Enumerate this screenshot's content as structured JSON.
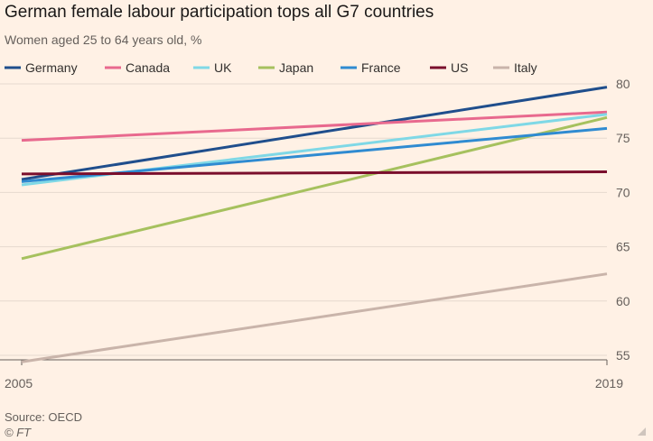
{
  "header": {
    "title": "German female labour participation tops all G7 countries",
    "subtitle": "Women aged 25 to 64 years old, %"
  },
  "footer": {
    "source": "Source: OECD",
    "credit": "© FT"
  },
  "chart_data": {
    "type": "line",
    "title": "German female labour participation tops all G7 countries",
    "subtitle": "Women aged 25 to 64 years old, %",
    "x": [
      "2005",
      "2019"
    ],
    "x_tick_labels": [
      "2005",
      "2019"
    ],
    "ylim": [
      54,
      81
    ],
    "y_ticks": [
      55,
      60,
      65,
      70,
      75,
      80
    ],
    "grid": true,
    "legend_placement": "top",
    "series": [
      {
        "name": "Germany",
        "color": "#1f4e8c",
        "values": [
          71.2,
          79.7
        ]
      },
      {
        "name": "Canada",
        "color": "#e8698e",
        "values": [
          74.8,
          77.4
        ]
      },
      {
        "name": "UK",
        "color": "#7fd8e6",
        "values": [
          70.7,
          77.2
        ]
      },
      {
        "name": "Japan",
        "color": "#a6c15e",
        "values": [
          63.9,
          76.9
        ]
      },
      {
        "name": "France",
        "color": "#2f8bd1",
        "values": [
          71.0,
          75.9
        ]
      },
      {
        "name": "US",
        "color": "#7a0e2c",
        "values": [
          71.7,
          71.9
        ]
      },
      {
        "name": "Italy",
        "color": "#c9b4aa",
        "values": [
          54.4,
          62.5
        ]
      }
    ]
  }
}
